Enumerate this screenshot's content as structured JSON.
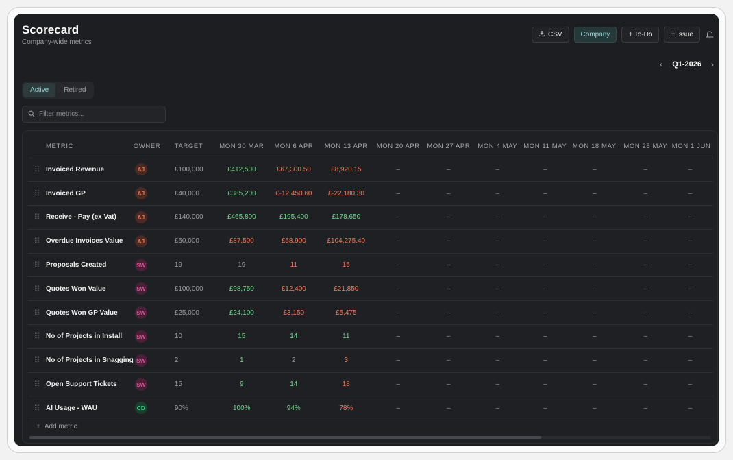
{
  "header": {
    "title": "Scorecard",
    "subtitle": "Company-wide metrics"
  },
  "toolbar": {
    "csv_label": "CSV",
    "company_label": "Company",
    "todo_label": "+ To-Do",
    "issue_label": "+ Issue"
  },
  "period": {
    "label": "Q1-2026"
  },
  "tabs": {
    "active": "Active",
    "retired": "Retired"
  },
  "filter": {
    "placeholder": "Filter metrics..."
  },
  "table": {
    "columns": {
      "metric": "METRIC",
      "owner": "OWNER",
      "target": "TARGET",
      "weeks": [
        "MON 30 MAR",
        "MON 6 APR",
        "MON 13 APR",
        "MON 20 APR",
        "MON 27 APR",
        "MON 4 MAY",
        "MON 11 MAY",
        "MON 18 MAY",
        "MON 25 MAY",
        "MON 1 JUN"
      ]
    },
    "rows": [
      {
        "drag": "⠿",
        "metric": "Invoiced Revenue",
        "owner": "AJ",
        "owner_color": "#e8744f",
        "owner_bg": "#4a2a22",
        "target": "£100,000",
        "values": [
          {
            "v": "£412,500",
            "s": "green"
          },
          {
            "v": "£67,300.50",
            "s": "red"
          },
          {
            "v": "£8,920.15",
            "s": "red"
          },
          {
            "v": "–",
            "s": "dash"
          },
          {
            "v": "–",
            "s": "dash"
          },
          {
            "v": "–",
            "s": "dash"
          },
          {
            "v": "–",
            "s": "dash"
          },
          {
            "v": "–",
            "s": "dash"
          },
          {
            "v": "–",
            "s": "dash"
          },
          {
            "v": "–",
            "s": "dash"
          }
        ]
      },
      {
        "drag": "⠿",
        "metric": "Invoiced GP",
        "owner": "AJ",
        "owner_color": "#e8744f",
        "owner_bg": "#4a2a22",
        "target": "£40,000",
        "values": [
          {
            "v": "£385,200",
            "s": "green"
          },
          {
            "v": "£-12,450.60",
            "s": "red"
          },
          {
            "v": "£-22,180.30",
            "s": "red"
          },
          {
            "v": "–",
            "s": "dash"
          },
          {
            "v": "–",
            "s": "dash"
          },
          {
            "v": "–",
            "s": "dash"
          },
          {
            "v": "–",
            "s": "dash"
          },
          {
            "v": "–",
            "s": "dash"
          },
          {
            "v": "–",
            "s": "dash"
          },
          {
            "v": "–",
            "s": "dash"
          }
        ]
      },
      {
        "drag": "⠿",
        "metric": "Receive - Pay (ex Vat)",
        "owner": "AJ",
        "owner_color": "#e8744f",
        "owner_bg": "#4a2a22",
        "target": "£140,000",
        "values": [
          {
            "v": "£465,800",
            "s": "green"
          },
          {
            "v": "£195,400",
            "s": "green"
          },
          {
            "v": "£178,650",
            "s": "green"
          },
          {
            "v": "–",
            "s": "dash"
          },
          {
            "v": "–",
            "s": "dash"
          },
          {
            "v": "–",
            "s": "dash"
          },
          {
            "v": "–",
            "s": "dash"
          },
          {
            "v": "–",
            "s": "dash"
          },
          {
            "v": "–",
            "s": "dash"
          },
          {
            "v": "–",
            "s": "dash"
          }
        ]
      },
      {
        "drag": "⠿",
        "metric": "Overdue Invoices Value",
        "owner": "AJ",
        "owner_color": "#e8744f",
        "owner_bg": "#4a2a22",
        "target": "£50,000",
        "values": [
          {
            "v": "£87,500",
            "s": "red"
          },
          {
            "v": "£58,900",
            "s": "red"
          },
          {
            "v": "£104,275.40",
            "s": "red"
          },
          {
            "v": "–",
            "s": "dash"
          },
          {
            "v": "–",
            "s": "dash"
          },
          {
            "v": "–",
            "s": "dash"
          },
          {
            "v": "–",
            "s": "dash"
          },
          {
            "v": "–",
            "s": "dash"
          },
          {
            "v": "–",
            "s": "dash"
          },
          {
            "v": "–",
            "s": "dash"
          }
        ]
      },
      {
        "drag": "⠿",
        "metric": "Proposals Created",
        "owner": "SW",
        "owner_color": "#e04f9a",
        "owner_bg": "#4a2038",
        "target": "19",
        "values": [
          {
            "v": "19",
            "s": "neutral"
          },
          {
            "v": "11",
            "s": "red"
          },
          {
            "v": "15",
            "s": "red"
          },
          {
            "v": "–",
            "s": "dash"
          },
          {
            "v": "–",
            "s": "dash"
          },
          {
            "v": "–",
            "s": "dash"
          },
          {
            "v": "–",
            "s": "dash"
          },
          {
            "v": "–",
            "s": "dash"
          },
          {
            "v": "–",
            "s": "dash"
          },
          {
            "v": "–",
            "s": "dash"
          }
        ]
      },
      {
        "drag": "⠿",
        "metric": "Quotes Won Value",
        "owner": "SW",
        "owner_color": "#e04f9a",
        "owner_bg": "#4a2038",
        "target": "£100,000",
        "values": [
          {
            "v": "£98,750",
            "s": "green"
          },
          {
            "v": "£12,400",
            "s": "red"
          },
          {
            "v": "£21,850",
            "s": "red"
          },
          {
            "v": "–",
            "s": "dash"
          },
          {
            "v": "–",
            "s": "dash"
          },
          {
            "v": "–",
            "s": "dash"
          },
          {
            "v": "–",
            "s": "dash"
          },
          {
            "v": "–",
            "s": "dash"
          },
          {
            "v": "–",
            "s": "dash"
          },
          {
            "v": "–",
            "s": "dash"
          }
        ]
      },
      {
        "drag": "⠿",
        "metric": "Quotes Won GP Value",
        "owner": "SW",
        "owner_color": "#e04f9a",
        "owner_bg": "#4a2038",
        "target": "£25,000",
        "values": [
          {
            "v": "£24,100",
            "s": "green"
          },
          {
            "v": "£3,150",
            "s": "red"
          },
          {
            "v": "£5,475",
            "s": "red"
          },
          {
            "v": "–",
            "s": "dash"
          },
          {
            "v": "–",
            "s": "dash"
          },
          {
            "v": "–",
            "s": "dash"
          },
          {
            "v": "–",
            "s": "dash"
          },
          {
            "v": "–",
            "s": "dash"
          },
          {
            "v": "–",
            "s": "dash"
          },
          {
            "v": "–",
            "s": "dash"
          }
        ]
      },
      {
        "drag": "⠿",
        "metric": "No of Projects in Install",
        "owner": "SW",
        "owner_color": "#e04f9a",
        "owner_bg": "#4a2038",
        "target": "10",
        "values": [
          {
            "v": "15",
            "s": "green"
          },
          {
            "v": "14",
            "s": "green"
          },
          {
            "v": "11",
            "s": "green"
          },
          {
            "v": "–",
            "s": "dash"
          },
          {
            "v": "–",
            "s": "dash"
          },
          {
            "v": "–",
            "s": "dash"
          },
          {
            "v": "–",
            "s": "dash"
          },
          {
            "v": "–",
            "s": "dash"
          },
          {
            "v": "–",
            "s": "dash"
          },
          {
            "v": "–",
            "s": "dash"
          }
        ]
      },
      {
        "drag": "⠿",
        "metric": "No of Projects in Snagging",
        "owner": "SW",
        "owner_color": "#e04f9a",
        "owner_bg": "#4a2038",
        "target": "2",
        "values": [
          {
            "v": "1",
            "s": "green"
          },
          {
            "v": "2",
            "s": "neutral"
          },
          {
            "v": "3",
            "s": "red"
          },
          {
            "v": "–",
            "s": "dash"
          },
          {
            "v": "–",
            "s": "dash"
          },
          {
            "v": "–",
            "s": "dash"
          },
          {
            "v": "–",
            "s": "dash"
          },
          {
            "v": "–",
            "s": "dash"
          },
          {
            "v": "–",
            "s": "dash"
          },
          {
            "v": "–",
            "s": "dash"
          }
        ]
      },
      {
        "drag": "⠿",
        "metric": "Open Support Tickets",
        "owner": "SW",
        "owner_color": "#e04f9a",
        "owner_bg": "#4a2038",
        "target": "15",
        "values": [
          {
            "v": "9",
            "s": "green"
          },
          {
            "v": "14",
            "s": "green"
          },
          {
            "v": "18",
            "s": "red"
          },
          {
            "v": "–",
            "s": "dash"
          },
          {
            "v": "–",
            "s": "dash"
          },
          {
            "v": "–",
            "s": "dash"
          },
          {
            "v": "–",
            "s": "dash"
          },
          {
            "v": "–",
            "s": "dash"
          },
          {
            "v": "–",
            "s": "dash"
          },
          {
            "v": "–",
            "s": "dash"
          }
        ]
      },
      {
        "drag": "⠿",
        "metric": "AI Usage - WAU",
        "owner": "CD",
        "owner_color": "#3fc98a",
        "owner_bg": "#1b3f2e",
        "target": "90%",
        "values": [
          {
            "v": "100%",
            "s": "green"
          },
          {
            "v": "94%",
            "s": "green"
          },
          {
            "v": "78%",
            "s": "red"
          },
          {
            "v": "–",
            "s": "dash"
          },
          {
            "v": "–",
            "s": "dash"
          },
          {
            "v": "–",
            "s": "dash"
          },
          {
            "v": "–",
            "s": "dash"
          },
          {
            "v": "–",
            "s": "dash"
          },
          {
            "v": "–",
            "s": "dash"
          },
          {
            "v": "–",
            "s": "dash"
          }
        ]
      }
    ],
    "add_metric_label": "Add metric"
  }
}
